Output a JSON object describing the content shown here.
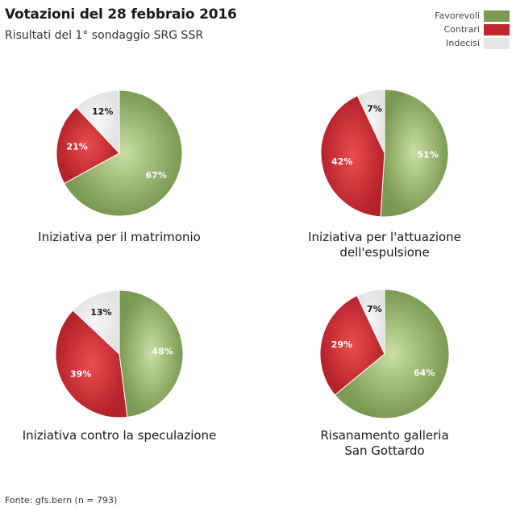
{
  "title": "Votazioni del 28 febbraio 2016",
  "subtitle": "Risultati del 1° sondaggio SRG SSR",
  "source": "Fonte: gfs.bern (n = 793)",
  "legend": [
    {
      "label": "Favorevoli",
      "color": "#7d9a55"
    },
    {
      "label": "Contrari",
      "color": "#c0272d"
    },
    {
      "label": "Indecisi",
      "color": "#e6e6e6"
    }
  ],
  "chart_data": [
    {
      "type": "pie",
      "title_lines": [
        "Iniziativa per il matrimonio"
      ],
      "slices": [
        {
          "label": "Favorevoli",
          "value": 67
        },
        {
          "label": "Contrari",
          "value": 21
        },
        {
          "label": "Indecisi",
          "value": 12
        }
      ]
    },
    {
      "type": "pie",
      "title_lines": [
        "Iniziativa per l'attuazione",
        "dell'espulsione"
      ],
      "slices": [
        {
          "label": "Favorevoli",
          "value": 51
        },
        {
          "label": "Contrari",
          "value": 42
        },
        {
          "label": "Indecisi",
          "value": 7
        }
      ]
    },
    {
      "type": "pie",
      "title_lines": [
        "Iniziativa contro la speculazione"
      ],
      "slices": [
        {
          "label": "Favorevoli",
          "value": 48
        },
        {
          "label": "Contrari",
          "value": 39
        },
        {
          "label": "Indecisi",
          "value": 13
        }
      ]
    },
    {
      "type": "pie",
      "title_lines": [
        "Risanamento galleria",
        "San Gottardo"
      ],
      "slices": [
        {
          "label": "Favorevoli",
          "value": 64
        },
        {
          "label": "Contrari",
          "value": 29
        },
        {
          "label": "Indecisi",
          "value": 7
        }
      ]
    }
  ]
}
